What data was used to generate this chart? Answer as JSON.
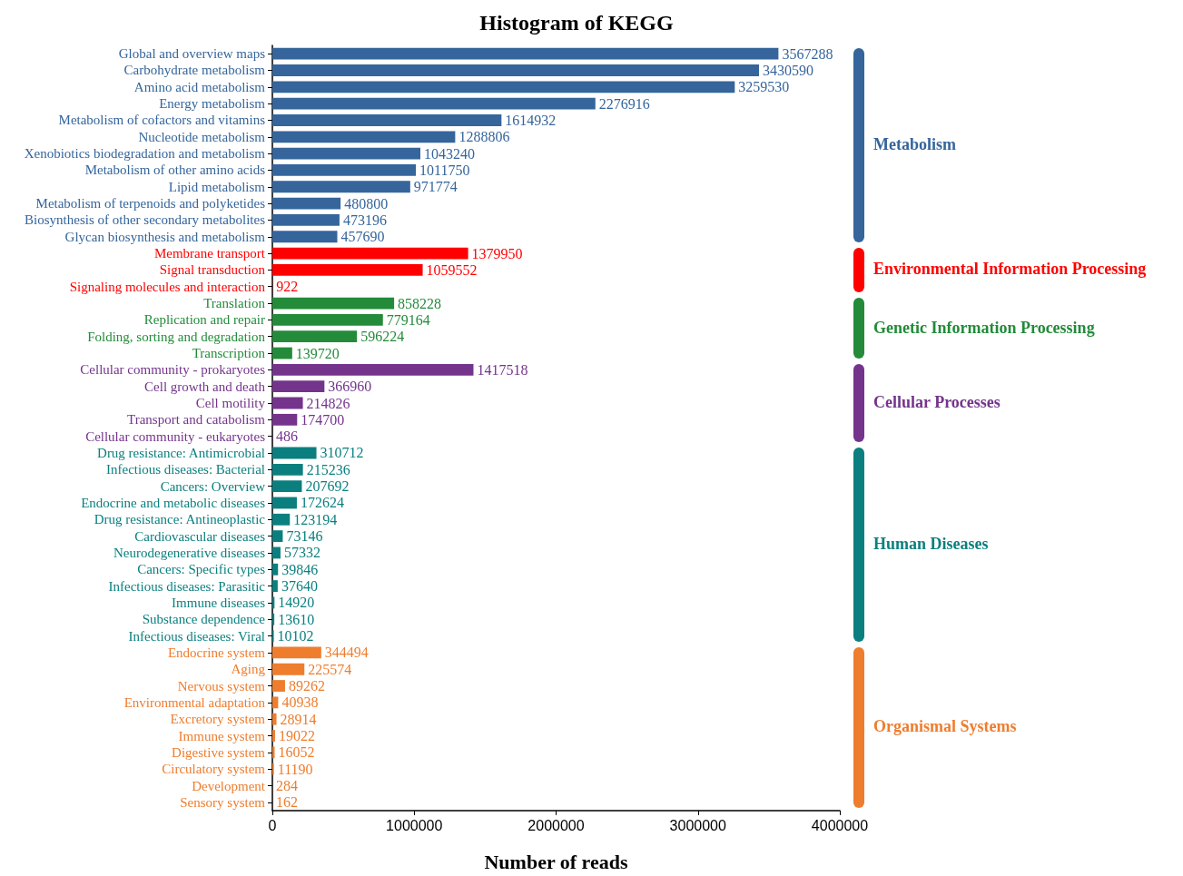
{
  "chart_data": {
    "type": "bar",
    "orientation": "horizontal",
    "title": "Histogram of KEGG",
    "xlabel": "Number of reads",
    "categories": [
      "Global and overview maps",
      "Carbohydrate metabolism",
      "Amino acid metabolism",
      "Energy metabolism",
      "Metabolism of cofactors and vitamins",
      "Nucleotide metabolism",
      "Xenobiotics biodegradation and metabolism",
      "Metabolism of other amino acids",
      "Lipid metabolism",
      "Metabolism of terpenoids and polyketides",
      "Biosynthesis of other secondary metabolites",
      "Glycan biosynthesis and metabolism",
      "Membrane transport",
      "Signal transduction",
      "Signaling molecules and interaction",
      "Translation",
      "Replication and repair",
      "Folding, sorting and degradation",
      "Transcription",
      "Cellular community - prokaryotes",
      "Cell growth and death",
      "Cell motility",
      "Transport and catabolism",
      "Cellular community - eukaryotes",
      "Drug resistance: Antimicrobial",
      "Infectious diseases: Bacterial",
      "Cancers: Overview",
      "Endocrine and metabolic diseases",
      "Drug resistance: Antineoplastic",
      "Cardiovascular diseases",
      "Neurodegenerative diseases",
      "Cancers: Specific types",
      "Infectious diseases: Parasitic",
      "Immune diseases",
      "Substance dependence",
      "Infectious diseases: Viral",
      "Endocrine system",
      "Aging",
      "Nervous system",
      "Environmental adaptation",
      "Excretory system",
      "Immune system",
      "Digestive system",
      "Circulatory system",
      "Development",
      "Sensory system"
    ],
    "values": [
      3567288,
      3430590,
      3259530,
      2276916,
      1614932,
      1288806,
      1043240,
      1011750,
      971774,
      480800,
      473196,
      457690,
      1379950,
      1059552,
      922,
      858228,
      779164,
      596224,
      139720,
      1417518,
      366960,
      214826,
      174700,
      486,
      310712,
      215236,
      207692,
      172624,
      123194,
      73146,
      57332,
      39846,
      37640,
      14920,
      13610,
      10102,
      344494,
      225574,
      89262,
      40938,
      28914,
      19022,
      16052,
      11190,
      284,
      162
    ],
    "colors": [
      "#35659b",
      "#35659b",
      "#35659b",
      "#35659b",
      "#35659b",
      "#35659b",
      "#35659b",
      "#35659b",
      "#35659b",
      "#35659b",
      "#35659b",
      "#35659b",
      "#ff0000",
      "#ff0000",
      "#ff0000",
      "#238b3a",
      "#238b3a",
      "#238b3a",
      "#238b3a",
      "#74348c",
      "#74348c",
      "#74348c",
      "#74348c",
      "#74348c",
      "#0b7f7f",
      "#0b7f7f",
      "#0b7f7f",
      "#0b7f7f",
      "#0b7f7f",
      "#0b7f7f",
      "#0b7f7f",
      "#0b7f7f",
      "#0b7f7f",
      "#0b7f7f",
      "#0b7f7f",
      "#0b7f7f",
      "#ee7d2e",
      "#ee7d2e",
      "#ee7d2e",
      "#ee7d2e",
      "#ee7d2e",
      "#ee7d2e",
      "#ee7d2e",
      "#ee7d2e",
      "#ee7d2e",
      "#ee7d2e"
    ],
    "xlim": [
      0,
      4000000
    ],
    "xticks": [
      0,
      1000000,
      2000000,
      3000000,
      4000000
    ],
    "data_labels": true,
    "annotations": [
      "Metabolism",
      "Environmental Information Processing",
      "Genetic Information Processing",
      "Cellular Processes",
      "Human Diseases",
      "Organismal Systems"
    ]
  }
}
